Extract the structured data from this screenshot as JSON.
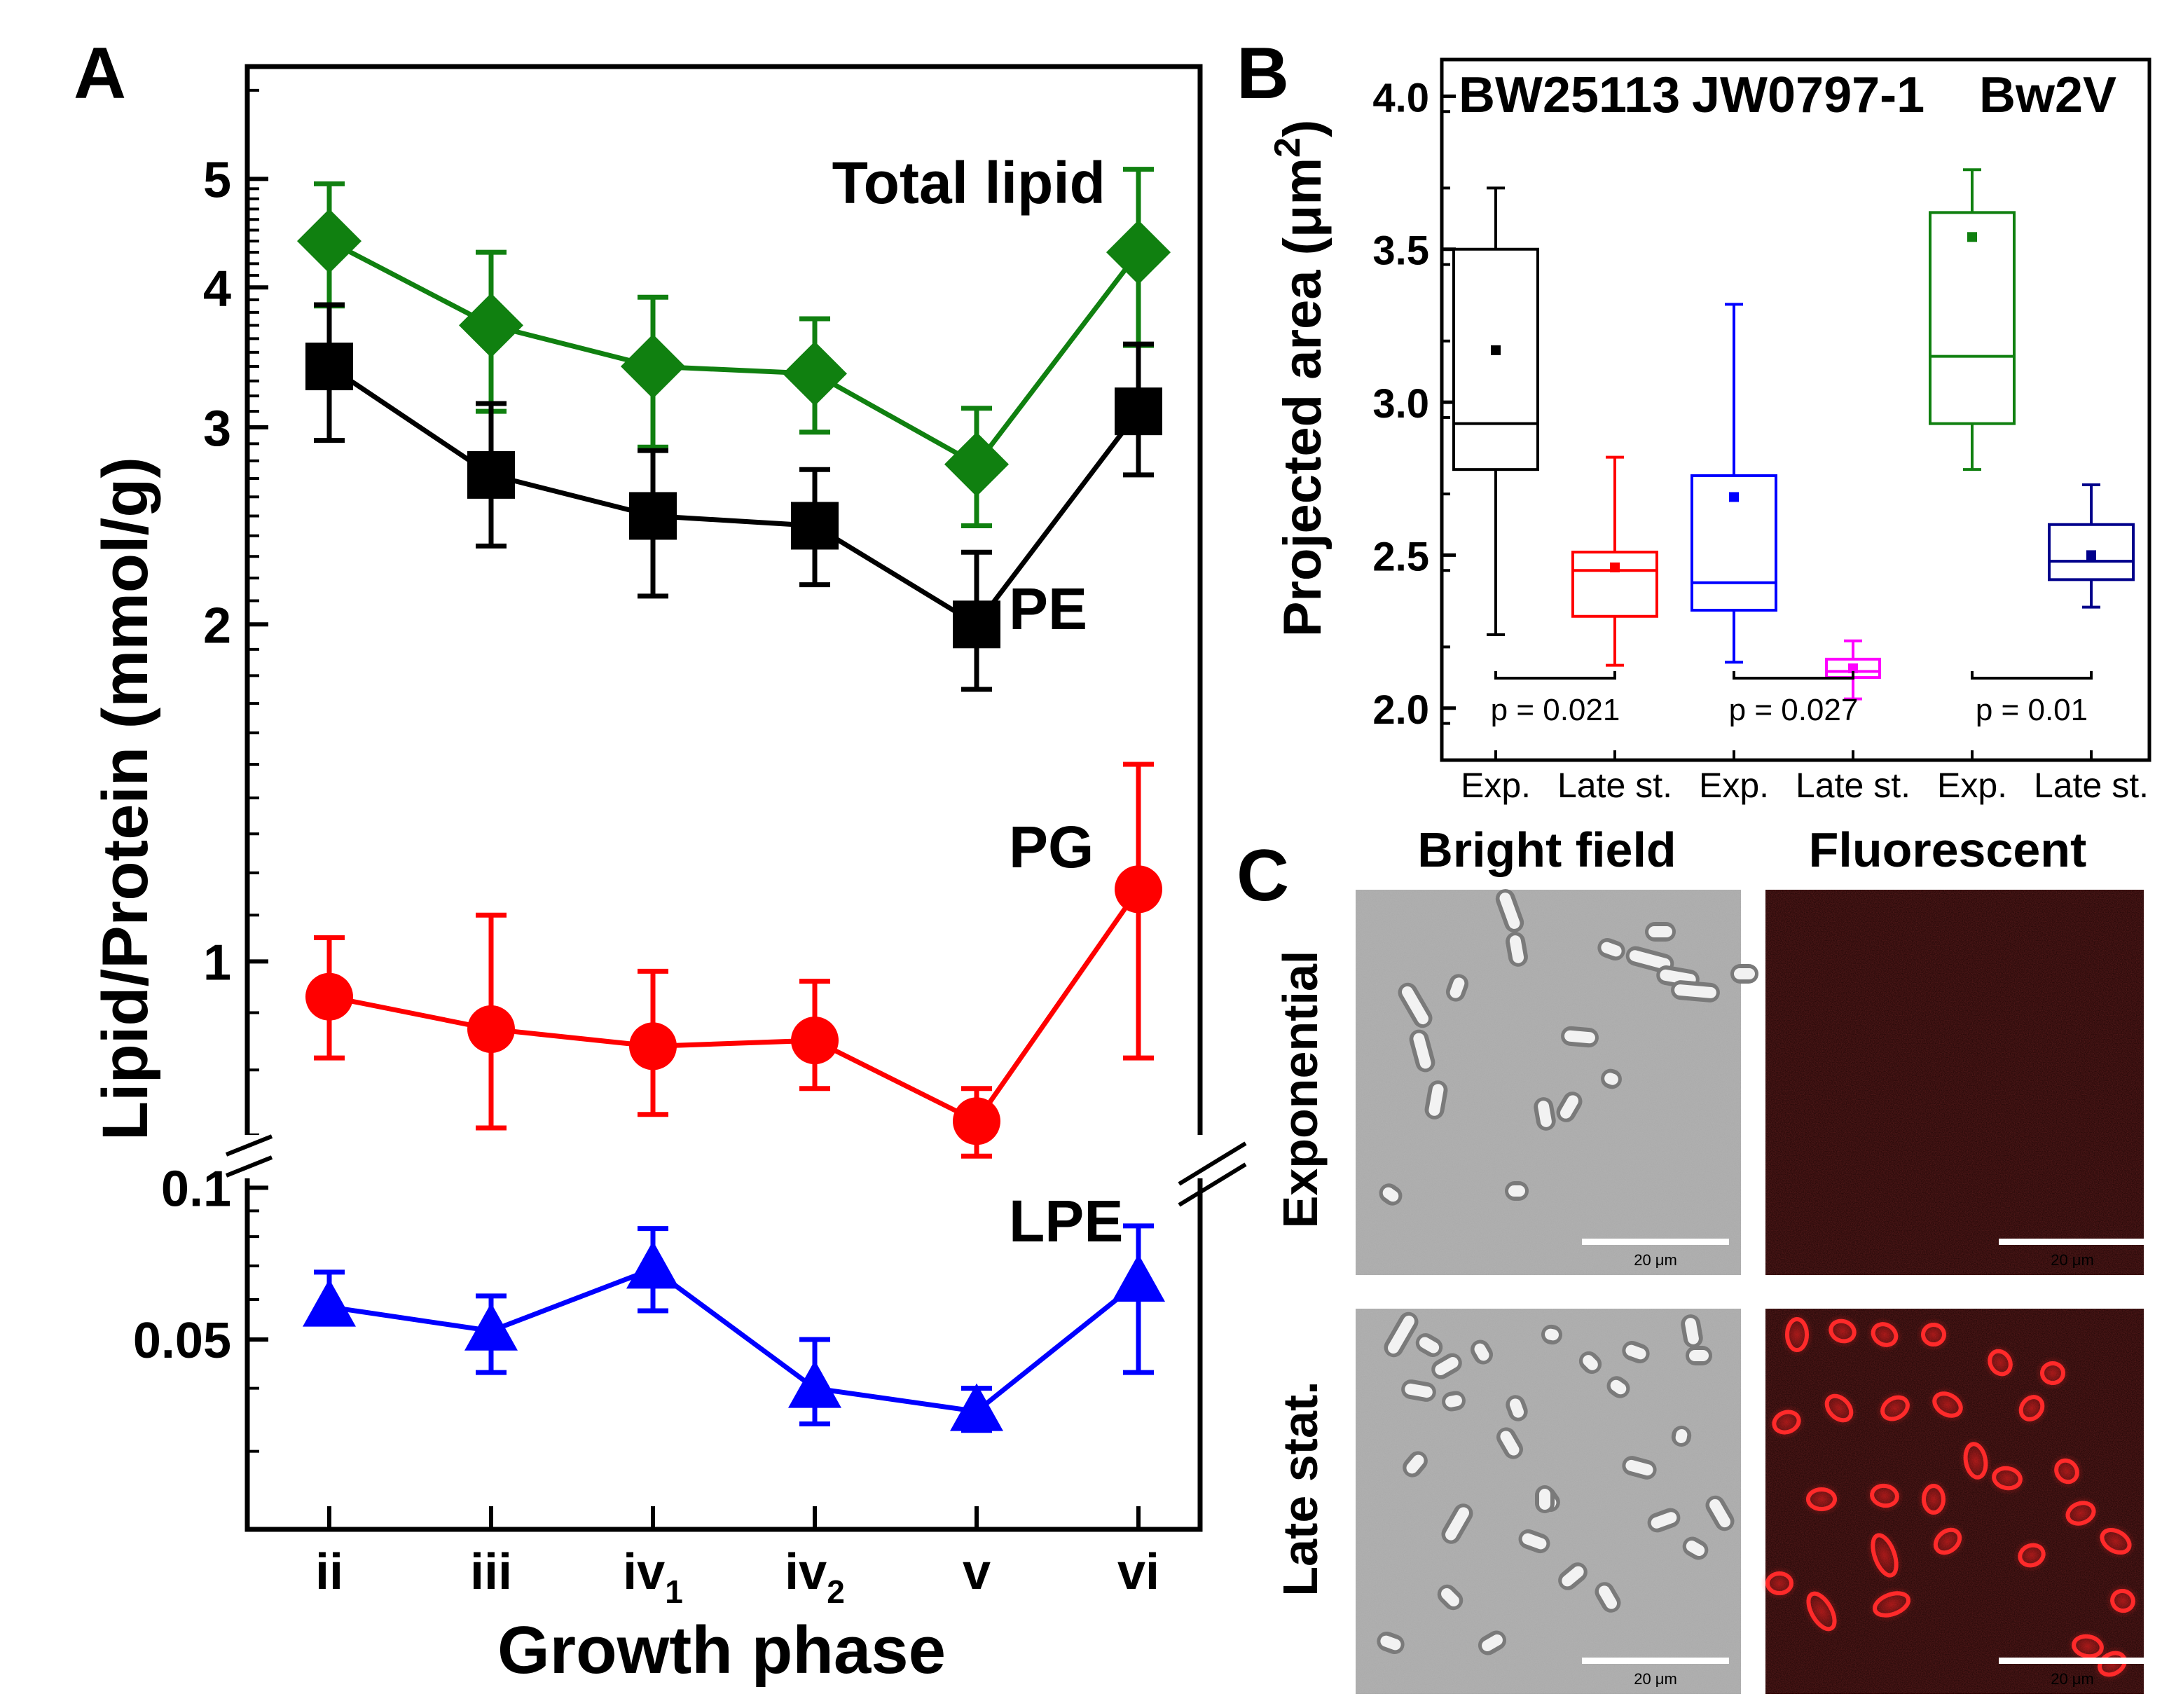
{
  "panel_labels": {
    "a": "A",
    "b": "B",
    "c": "C"
  },
  "chart_data": [
    {
      "panel": "A",
      "type": "line",
      "yscale": "log (broken axis)",
      "xlabel": "Growth phase",
      "ylabel": "Lipid/Protein (mmol/g)",
      "categories": [
        {
          "main": "ii",
          "sub": ""
        },
        {
          "main": "iii",
          "sub": ""
        },
        {
          "main": "iv",
          "sub": "1"
        },
        {
          "main": "iv",
          "sub": "2"
        },
        {
          "main": "v",
          "sub": ""
        },
        {
          "main": "vi",
          "sub": ""
        }
      ],
      "upper_ylim": [
        0.68,
        6.3
      ],
      "lower_ylim": [
        0.021,
        0.112
      ],
      "upper_ticks": [
        {
          "value": 1,
          "label": "1"
        },
        {
          "value": 2,
          "label": "2"
        },
        {
          "value": 3,
          "label": "3"
        },
        {
          "value": 4,
          "label": "4"
        },
        {
          "value": 5,
          "label": "5"
        }
      ],
      "lower_ticks": [
        {
          "value": 0.05,
          "label": "0.05"
        },
        {
          "value": 0.1,
          "label": "0.1"
        }
      ],
      "series": [
        {
          "name": "Total lipid",
          "color": "#108010",
          "marker": "diamond",
          "axis": "upper",
          "values": [
            4.4,
            3.7,
            3.4,
            3.35,
            2.78,
            4.3
          ],
          "err_low": [
            3.85,
            3.1,
            2.88,
            2.97,
            2.45,
            3.55
          ],
          "err_high": [
            4.95,
            4.3,
            3.92,
            3.75,
            3.12,
            5.1
          ]
        },
        {
          "name": "PE",
          "color": "#000000",
          "marker": "square",
          "axis": "upper",
          "values": [
            3.4,
            2.72,
            2.5,
            2.45,
            2.0,
            3.1
          ],
          "err_low": [
            2.92,
            2.35,
            2.12,
            2.17,
            1.75,
            2.72
          ],
          "err_high": [
            3.86,
            3.15,
            2.86,
            2.75,
            2.32,
            3.56
          ]
        },
        {
          "name": "PG",
          "color": "#ff0000",
          "marker": "circle",
          "axis": "upper",
          "values": [
            0.93,
            0.87,
            0.84,
            0.85,
            0.72,
            1.16
          ],
          "err_low": [
            0.82,
            0.71,
            0.73,
            0.77,
            0.67,
            0.82
          ],
          "err_high": [
            1.05,
            1.1,
            0.98,
            0.96,
            0.77,
            1.5
          ]
        },
        {
          "name": "LPE",
          "color": "#0000ff",
          "marker": "triangle",
          "axis": "lower",
          "values": [
            0.058,
            0.052,
            0.069,
            0.04,
            0.036,
            0.065
          ],
          "err_low": [
            0.054,
            0.043,
            0.057,
            0.034,
            0.033,
            0.043
          ],
          "err_high": [
            0.068,
            0.061,
            0.083,
            0.05,
            0.04,
            0.084
          ]
        }
      ]
    },
    {
      "panel": "B",
      "type": "box",
      "ylabel": "Projected area (μm",
      "ylabel_sup": "2",
      "ylabel_end": ")",
      "ylim": [
        1.83,
        4.12
      ],
      "yticks": [
        {
          "value": 2.0,
          "label": "2.0"
        },
        {
          "value": 2.5,
          "label": "2.5"
        },
        {
          "value": 3.0,
          "label": "3.0"
        },
        {
          "value": 3.5,
          "label": "3.5"
        },
        {
          "value": 4.0,
          "label": "4.0"
        }
      ],
      "strains": [
        "BW25113",
        "JW0797-1",
        "Bw2V"
      ],
      "categories": [
        "Exp.",
        "Late st.",
        "Exp.",
        "Late st.",
        "Exp.",
        "Late st."
      ],
      "boxes": [
        {
          "color": "#000000",
          "whisker_low": 2.24,
          "q1": 2.78,
          "median": 2.93,
          "q3": 3.5,
          "whisker_high": 3.7,
          "mean": 3.17
        },
        {
          "color": "#ff0000",
          "whisker_low": 2.14,
          "q1": 2.3,
          "median": 2.45,
          "q3": 2.51,
          "whisker_high": 2.82,
          "mean": 2.46
        },
        {
          "color": "#0000ff",
          "whisker_low": 2.15,
          "q1": 2.32,
          "median": 2.41,
          "q3": 2.76,
          "whisker_high": 3.32,
          "mean": 2.69
        },
        {
          "color": "#ff00ff",
          "whisker_low": 2.03,
          "q1": 2.1,
          "median": 2.12,
          "q3": 2.16,
          "whisker_high": 2.22,
          "mean": 2.13
        },
        {
          "color": "#108010",
          "whisker_low": 2.78,
          "q1": 2.93,
          "median": 3.15,
          "q3": 3.62,
          "whisker_high": 3.76,
          "mean": 3.54
        },
        {
          "color": "#00008b",
          "whisker_low": 2.33,
          "q1": 2.42,
          "median": 2.48,
          "q3": 2.6,
          "whisker_high": 2.73,
          "mean": 2.5
        }
      ],
      "pvalues": [
        "p = 0.021",
        "p = 0.027",
        "p = 0.01"
      ]
    }
  ],
  "panel_c": {
    "col_titles": [
      "Bright field",
      "Fluorescent"
    ],
    "row_titles": [
      "Exponential",
      "Late stat."
    ],
    "scale_bar_label": "20 μm"
  }
}
